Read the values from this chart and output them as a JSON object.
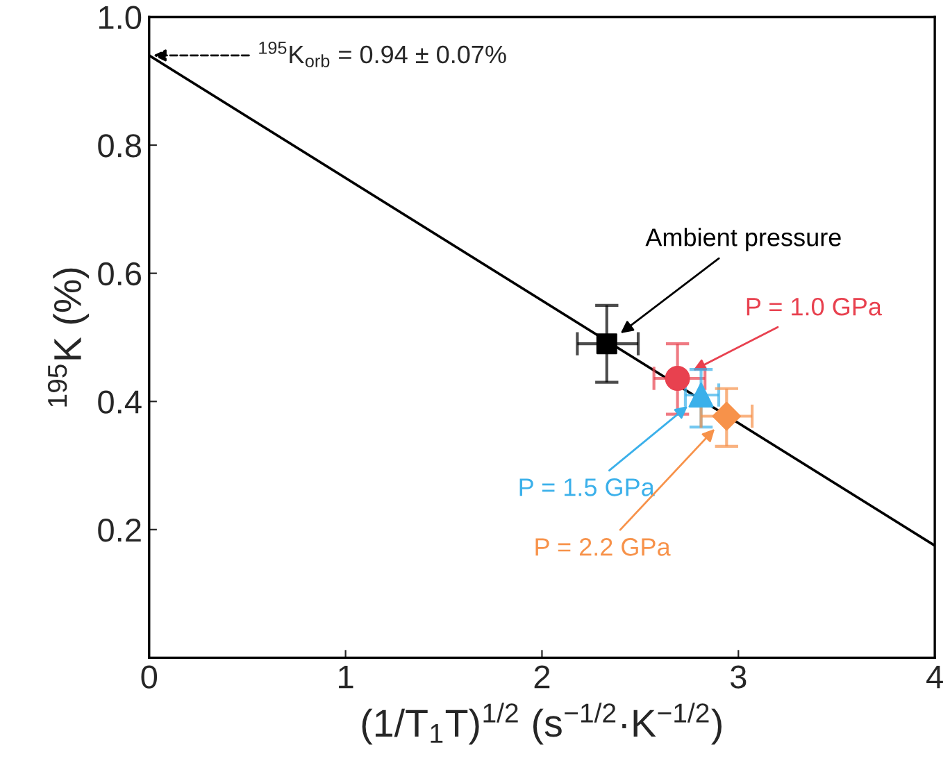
{
  "chart_data": {
    "type": "scatter",
    "xlabel": "(1/T$_{1}$T)$^{1/2}$ (s$^{−1/2}$·K$^{−1/2}$)",
    "ylabel": "$^{195}$K (%)",
    "xlim": [
      0,
      4
    ],
    "xticks": [
      0,
      1,
      2,
      3,
      4
    ],
    "ylim": [
      0,
      1.0
    ],
    "yticks": [
      {
        "value": 0,
        "label": null
      },
      0.2,
      0.4,
      0.6,
      0.8,
      {
        "value": 1.0,
        "label": "1.0"
      }
    ],
    "grid": false,
    "legend": false,
    "series": [
      {
        "type": "line",
        "color": "#000000",
        "x": [
          0,
          4
        ],
        "values": [
          0.94,
          0.175
        ],
        "marker": "none",
        "line_style": "solid"
      },
      {
        "name": "Ambient pressure",
        "color": "#000000",
        "x": [
          2.33
        ],
        "values": [
          0.49
        ],
        "errors": [
          [
            0.43,
            0.55
          ]
        ],
        "xerrors": [
          [
            2.18,
            2.49
          ]
        ],
        "marker": "square"
      },
      {
        "name": "P = 1.0 GPa",
        "color": "#e8414f",
        "x": [
          2.69
        ],
        "values": [
          0.436
        ],
        "errors": [
          [
            0.38,
            0.49
          ]
        ],
        "xerrors": [
          [
            2.57,
            2.83
          ]
        ],
        "marker": "circle"
      },
      {
        "name": "P = 1.5 GPa",
        "color": "#3bb0ea",
        "x": [
          2.81
        ],
        "values": [
          0.41
        ],
        "errors": [
          [
            0.36,
            0.45
          ]
        ],
        "xerrors": [
          [
            2.73,
            2.9
          ]
        ],
        "marker": "triangle"
      },
      {
        "name": "P = 2.2 GPa",
        "color": "#f7924a",
        "x": [
          2.94
        ],
        "values": [
          0.377
        ],
        "errors": [
          [
            0.33,
            0.42
          ]
        ],
        "xerrors": [
          [
            2.81,
            3.07
          ]
        ],
        "marker": "diamond"
      }
    ],
    "annotations": [
      "$^{195}$K$_{orb}$ = 0.94 ± 0.07%"
    ]
  }
}
